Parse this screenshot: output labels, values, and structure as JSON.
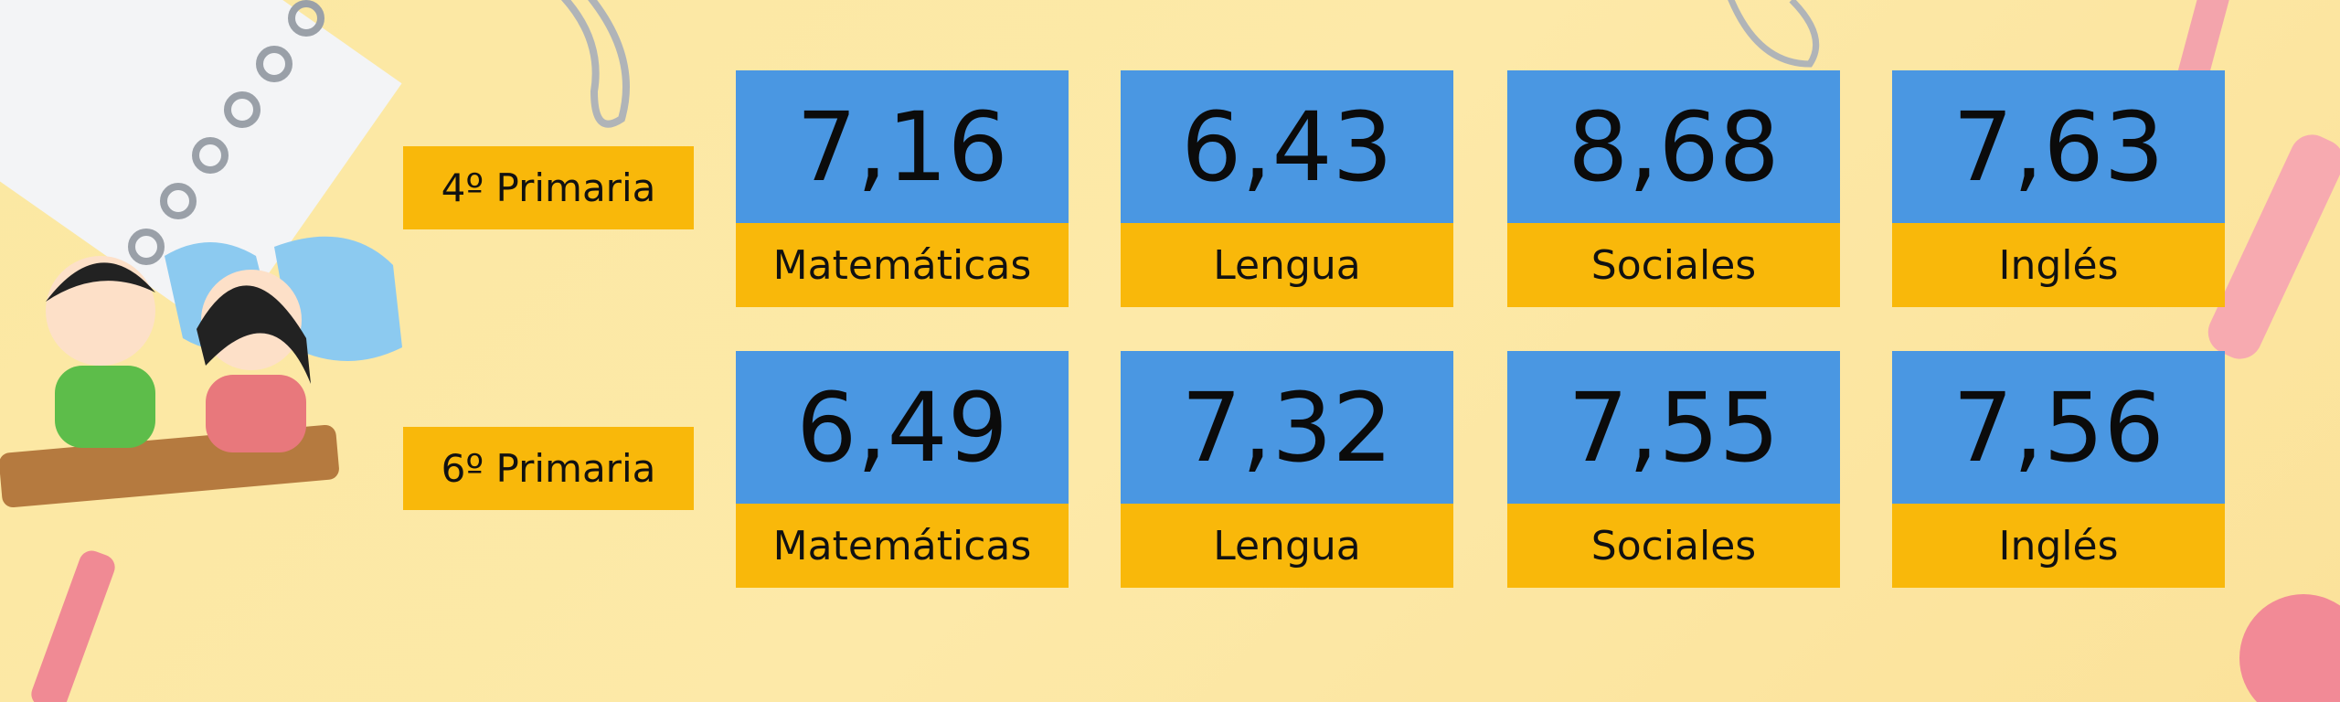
{
  "rows": [
    {
      "label": "4º Primaria",
      "cards": [
        {
          "score": "7,16",
          "subject": "Matemáticas"
        },
        {
          "score": "6,43",
          "subject": "Lengua"
        },
        {
          "score": "8,68",
          "subject": "Sociales"
        },
        {
          "score": "7,63",
          "subject": "Inglés"
        }
      ]
    },
    {
      "label": "6º Primaria",
      "cards": [
        {
          "score": "6,49",
          "subject": "Matemáticas"
        },
        {
          "score": "7,32",
          "subject": "Lengua"
        },
        {
          "score": "7,55",
          "subject": "Sociales"
        },
        {
          "score": "7,56",
          "subject": "Inglés"
        }
      ]
    }
  ]
}
